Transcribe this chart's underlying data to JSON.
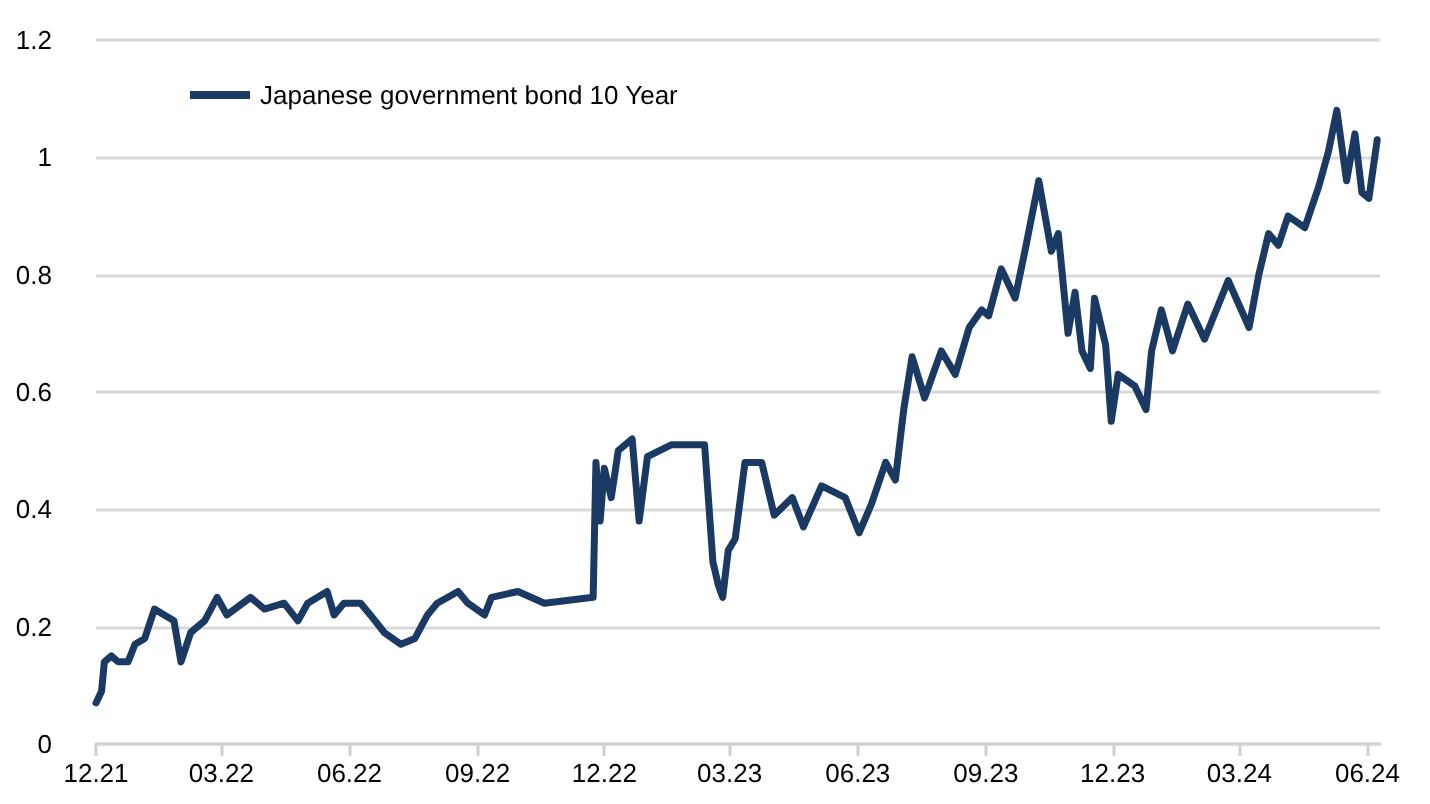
{
  "chart_data": {
    "type": "line",
    "legend": "top left",
    "grid": "y",
    "marker": "none",
    "line_style": "solid",
    "xlim": [
      "2021-12-01",
      "2024-06-10"
    ],
    "xticks": [
      {
        "value": "2021-12-01",
        "label": "12.21"
      },
      {
        "value": "2022-03-01",
        "label": "03.22"
      },
      {
        "value": "2022-06-01",
        "label": "06.22"
      },
      {
        "value": "2022-09-01",
        "label": "09.22"
      },
      {
        "value": "2022-12-01",
        "label": "12.22"
      },
      {
        "value": "2023-03-01",
        "label": "03.23"
      },
      {
        "value": "2023-06-01",
        "label": "06.23"
      },
      {
        "value": "2023-09-01",
        "label": "09.23"
      },
      {
        "value": "2023-12-01",
        "label": "12.23"
      },
      {
        "value": "2024-03-01",
        "label": "03.24"
      },
      {
        "value": "2024-06-01",
        "label": "06.24"
      }
    ],
    "ylim": [
      0,
      1.2
    ],
    "yticks": [
      0,
      0.2,
      0.4,
      0.6,
      0.8,
      1,
      1.2
    ],
    "x": [
      "2021-12-01",
      "2021-12-05",
      "2021-12-07",
      "2021-12-12",
      "2021-12-17",
      "2021-12-24",
      "2021-12-29",
      "2022-01-05",
      "2022-01-12",
      "2022-01-19",
      "2022-01-26",
      "2022-01-31",
      "2022-02-07",
      "2022-02-17",
      "2022-02-26",
      "2022-03-05",
      "2022-03-22",
      "2022-04-01",
      "2022-04-15",
      "2022-04-25",
      "2022-05-02",
      "2022-05-16",
      "2022-05-21",
      "2022-05-28",
      "2022-06-09",
      "2022-06-16",
      "2022-06-26",
      "2022-07-08",
      "2022-07-18",
      "2022-07-27",
      "2022-08-03",
      "2022-08-18",
      "2022-08-25",
      "2022-09-06",
      "2022-09-11",
      "2022-09-30",
      "2022-10-19",
      "2022-11-23",
      "2022-11-25",
      "2022-11-28",
      "2022-12-01",
      "2022-12-06",
      "2022-12-11",
      "2022-12-21",
      "2022-12-26",
      "2023-01-01",
      "2023-01-18",
      "2023-02-11",
      "2023-02-17",
      "2023-02-21",
      "2023-02-24",
      "2023-02-28",
      "2023-03-05",
      "2023-03-12",
      "2023-03-24",
      "2023-04-02",
      "2023-04-15",
      "2023-04-23",
      "2023-05-06",
      "2023-05-23",
      "2023-06-02",
      "2023-06-11",
      "2023-06-21",
      "2023-06-28",
      "2023-07-04",
      "2023-07-10",
      "2023-07-19",
      "2023-07-31",
      "2023-08-10",
      "2023-08-20",
      "2023-08-29",
      "2023-09-03",
      "2023-09-12",
      "2023-09-22",
      "2023-09-29",
      "2023-10-09",
      "2023-10-18",
      "2023-10-23",
      "2023-10-30",
      "2023-11-04",
      "2023-11-09",
      "2023-11-15",
      "2023-11-18",
      "2023-11-26",
      "2023-11-30",
      "2023-12-05",
      "2023-12-17",
      "2023-12-25",
      "2023-12-29",
      "2024-01-05",
      "2024-01-13",
      "2024-01-24",
      "2024-02-05",
      "2024-02-22",
      "2024-03-08",
      "2024-03-15",
      "2024-03-22",
      "2024-03-29",
      "2024-04-05",
      "2024-04-17",
      "2024-04-27",
      "2024-05-04",
      "2024-05-10",
      "2024-05-17",
      "2024-05-23",
      "2024-05-28",
      "2024-06-02",
      "2024-06-08"
    ],
    "series": [
      {
        "name": "Japanese government bond 10 Year",
        "color": "#1b3a63",
        "values": [
          0.07,
          0.09,
          0.14,
          0.15,
          0.14,
          0.14,
          0.17,
          0.18,
          0.23,
          0.22,
          0.21,
          0.14,
          0.19,
          0.21,
          0.25,
          0.22,
          0.25,
          0.23,
          0.24,
          0.21,
          0.24,
          0.26,
          0.22,
          0.24,
          0.24,
          0.22,
          0.19,
          0.17,
          0.18,
          0.22,
          0.24,
          0.26,
          0.24,
          0.22,
          0.25,
          0.26,
          0.24,
          0.25,
          0.48,
          0.38,
          0.47,
          0.42,
          0.5,
          0.52,
          0.38,
          0.49,
          0.51,
          0.51,
          0.31,
          0.27,
          0.25,
          0.33,
          0.35,
          0.48,
          0.48,
          0.39,
          0.42,
          0.37,
          0.44,
          0.42,
          0.36,
          0.41,
          0.48,
          0.45,
          0.57,
          0.66,
          0.59,
          0.67,
          0.63,
          0.71,
          0.74,
          0.73,
          0.81,
          0.76,
          0.84,
          0.96,
          0.84,
          0.87,
          0.7,
          0.77,
          0.67,
          0.64,
          0.76,
          0.68,
          0.55,
          0.63,
          0.61,
          0.57,
          0.67,
          0.74,
          0.67,
          0.75,
          0.69,
          0.79,
          0.71,
          0.8,
          0.87,
          0.85,
          0.9,
          0.88,
          0.95,
          1.01,
          1.08,
          0.96,
          1.04,
          0.94,
          0.93,
          1.03
        ]
      }
    ]
  }
}
